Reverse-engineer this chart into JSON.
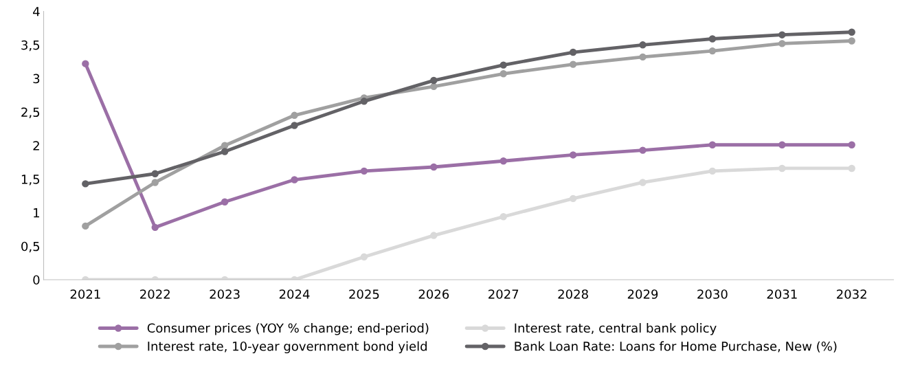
{
  "chart_data": {
    "type": "line",
    "categories": [
      "2021",
      "2022",
      "2023",
      "2024",
      "2025",
      "2026",
      "2027",
      "2028",
      "2029",
      "2030",
      "2031",
      "2032"
    ],
    "series": [
      {
        "name": "Consumer prices (YOY % change; end-period)",
        "color": "#9b6fa6",
        "values": [
          3.22,
          0.78,
          1.16,
          1.49,
          1.62,
          1.68,
          1.77,
          1.86,
          1.93,
          2.01,
          2.01,
          2.01
        ]
      },
      {
        "name": "Interest rate, central bank policy",
        "color": "#d9d9d9",
        "values": [
          0,
          0,
          0,
          0,
          0.34,
          0.66,
          0.94,
          1.21,
          1.45,
          1.62,
          1.66,
          1.66
        ]
      },
      {
        "name": "Interest rate, 10-year government bond yield",
        "color": "#a0a0a0",
        "values": [
          0.8,
          1.45,
          2.0,
          2.45,
          2.71,
          2.88,
          3.07,
          3.21,
          3.32,
          3.41,
          3.52,
          3.56
        ]
      },
      {
        "name": "Bank Loan Rate: Loans for Home Purchase, New (%)",
        "color": "#636266",
        "values": [
          1.43,
          1.58,
          1.91,
          2.3,
          2.66,
          2.97,
          3.2,
          3.39,
          3.5,
          3.59,
          3.65,
          3.69
        ]
      }
    ],
    "ylim": [
      0,
      4
    ],
    "yticks": [
      0,
      {
        "value": 0.5,
        "label": "0,5"
      },
      1,
      {
        "value": 1.5,
        "label": "1,5"
      },
      2,
      {
        "value": 2.5,
        "label": "2,5"
      },
      3,
      {
        "value": 3.5,
        "label": "3,5"
      },
      4
    ],
    "grid": false,
    "legend": "bottom",
    "marker": "circle",
    "line_style": "solid"
  }
}
